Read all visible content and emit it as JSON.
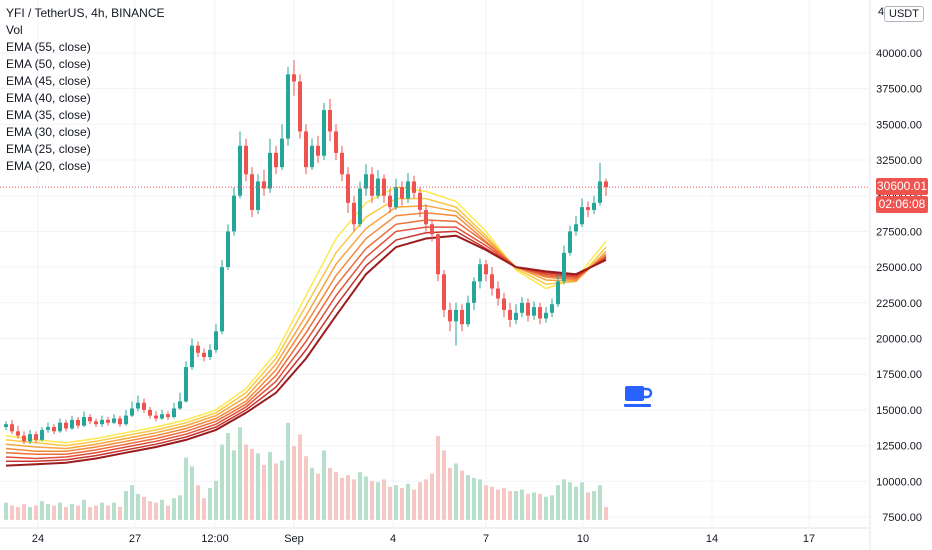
{
  "header": {
    "symbol_line": "YFI / TetherUS, 4h, BINANCE",
    "indicators": [
      "Vol",
      "EMA (55, close)",
      "EMA (50, close)",
      "EMA (45, close)",
      "EMA (40, close)",
      "EMA (35, close)",
      "EMA (30, close)",
      "EMA (25, close)",
      "EMA (20, close)"
    ]
  },
  "price_scale": {
    "currency": "USDT",
    "ticks": [
      "7500.00",
      "10000.00",
      "12500.00",
      "15000.00",
      "17500.00",
      "20000.00",
      "22500.00",
      "25000.00",
      "27500.00",
      "30000.00",
      "32500.00",
      "35000.00",
      "37500.00",
      "40000.00"
    ],
    "top_partial_tick": "4",
    "last_price": "30600.01",
    "countdown": "02:06:08"
  },
  "time_scale": {
    "ticks": [
      "24",
      "27",
      "12:00",
      "Sep",
      "4",
      "7",
      "10",
      "14",
      "17"
    ]
  },
  "icon": "coffee-cup-icon",
  "colors": {
    "up": "#26a69a",
    "down": "#ef5350",
    "up_vol": "#b6e0cb",
    "down_vol": "#f6c8c5",
    "ema_20": "#fce94f",
    "ema_55": "#9b1c1c",
    "last_price_tag": "#ef5350",
    "countdown_tag": "#ef5350",
    "icon": "#2962ff"
  },
  "chart_data": {
    "type": "candlestick",
    "title": "YFI / TetherUS, 4h, BINANCE",
    "ylim": [
      7000,
      43000
    ],
    "x_tick_labels": [
      "24",
      "27",
      "12:00",
      "Sep",
      "4",
      "7",
      "10",
      "14",
      "17"
    ],
    "last_price": 30600.01,
    "candles": [
      [
        13800,
        14000,
        14200,
        13600
      ],
      [
        14000,
        13500,
        14300,
        13300
      ],
      [
        13500,
        13200,
        13900,
        13000
      ],
      [
        13200,
        12800,
        13500,
        12600
      ],
      [
        12800,
        13300,
        13600,
        12600
      ],
      [
        13300,
        12900,
        13500,
        12700
      ],
      [
        12900,
        13600,
        13800,
        12800
      ],
      [
        13600,
        13800,
        14100,
        13400
      ],
      [
        13800,
        13500,
        14000,
        13300
      ],
      [
        13500,
        14100,
        14400,
        13400
      ],
      [
        14100,
        13700,
        14300,
        13500
      ],
      [
        13700,
        14300,
        14600,
        13600
      ],
      [
        14300,
        13900,
        14500,
        13700
      ],
      [
        13900,
        14500,
        14900,
        13800
      ],
      [
        14500,
        14200,
        14700,
        14000
      ],
      [
        14200,
        14000,
        14400,
        13800
      ],
      [
        14000,
        14300,
        14600,
        13800
      ],
      [
        14300,
        14100,
        14500,
        13900
      ],
      [
        14100,
        14400,
        14700,
        14000
      ],
      [
        14400,
        14000,
        14600,
        13800
      ],
      [
        14000,
        14600,
        15000,
        13900
      ],
      [
        14600,
        15100,
        15600,
        14500
      ],
      [
        15100,
        15500,
        16000,
        14900
      ],
      [
        15500,
        15000,
        15800,
        14800
      ],
      [
        15000,
        14600,
        15200,
        14400
      ],
      [
        14600,
        14400,
        14900,
        14200
      ],
      [
        14400,
        14700,
        15000,
        14300
      ],
      [
        14700,
        14500,
        14900,
        14300
      ],
      [
        14500,
        15100,
        15500,
        14400
      ],
      [
        15100,
        15600,
        16200,
        15000
      ],
      [
        15600,
        18000,
        18400,
        15500
      ],
      [
        18000,
        19500,
        20000,
        17800
      ],
      [
        19500,
        19000,
        19800,
        18700
      ],
      [
        19000,
        18700,
        19300,
        18400
      ],
      [
        18700,
        19200,
        19600,
        18500
      ],
      [
        19200,
        20500,
        21000,
        19000
      ],
      [
        20500,
        25000,
        25500,
        20300
      ],
      [
        25000,
        27500,
        28000,
        24800
      ],
      [
        27500,
        30000,
        30600,
        27200
      ],
      [
        30000,
        33500,
        34500,
        29800
      ],
      [
        33500,
        31500,
        34000,
        31000
      ],
      [
        31500,
        29000,
        32000,
        28500
      ],
      [
        29000,
        31000,
        31500,
        28700
      ],
      [
        31000,
        30500,
        31800,
        30000
      ],
      [
        30500,
        33000,
        34000,
        30200
      ],
      [
        33000,
        32000,
        33500,
        31500
      ],
      [
        32000,
        34000,
        35000,
        31800
      ],
      [
        34000,
        38500,
        39000,
        33500
      ],
      [
        38500,
        38000,
        39500,
        37000
      ],
      [
        38000,
        34500,
        38500,
        34000
      ],
      [
        34500,
        32000,
        35000,
        31500
      ],
      [
        32000,
        33500,
        34000,
        31800
      ],
      [
        33500,
        32800,
        34200,
        32300
      ],
      [
        32800,
        36000,
        36500,
        32500
      ],
      [
        36000,
        34500,
        36800,
        33800
      ],
      [
        34500,
        33000,
        35000,
        32500
      ],
      [
        33000,
        31500,
        33500,
        31000
      ],
      [
        31500,
        29500,
        32000,
        28800
      ],
      [
        29500,
        28000,
        30000,
        27500
      ],
      [
        28000,
        30500,
        31000,
        27800
      ],
      [
        30500,
        31500,
        32200,
        30000
      ],
      [
        31500,
        30000,
        32000,
        29500
      ],
      [
        30000,
        31200,
        31800,
        29800
      ],
      [
        31200,
        30000,
        31500,
        29500
      ],
      [
        30000,
        29200,
        30500,
        28800
      ],
      [
        29200,
        30600,
        31200,
        29000
      ],
      [
        30600,
        29800,
        31000,
        29300
      ],
      [
        29800,
        31000,
        31600,
        29500
      ],
      [
        31000,
        30200,
        31400,
        29800
      ],
      [
        30200,
        29000,
        30600,
        28500
      ],
      [
        29000,
        28000,
        29400,
        27500
      ],
      [
        28000,
        27300,
        28300,
        26800
      ],
      [
        27300,
        24500,
        27500,
        24000
      ],
      [
        24500,
        22000,
        24800,
        21500
      ],
      [
        22000,
        21200,
        22500,
        20500
      ],
      [
        21200,
        22000,
        22500,
        19500
      ],
      [
        22000,
        21000,
        22400,
        20500
      ],
      [
        21000,
        22500,
        23000,
        20800
      ],
      [
        22500,
        24000,
        24300,
        22000
      ],
      [
        24000,
        25200,
        25600,
        23500
      ],
      [
        25200,
        24500,
        25500,
        24000
      ],
      [
        24500,
        23500,
        25000,
        23000
      ],
      [
        23500,
        22800,
        24000,
        22300
      ],
      [
        22800,
        22000,
        23200,
        21500
      ],
      [
        22000,
        21300,
        22500,
        20800
      ],
      [
        21300,
        21800,
        22400,
        21000
      ],
      [
        21800,
        22500,
        22900,
        21500
      ],
      [
        22500,
        21600,
        22800,
        21200
      ],
      [
        21600,
        22200,
        22600,
        21300
      ],
      [
        22200,
        21400,
        22500,
        21000
      ],
      [
        21400,
        21800,
        22200,
        21100
      ],
      [
        21800,
        22400,
        22800,
        21500
      ],
      [
        22400,
        24000,
        24500,
        22200
      ],
      [
        24000,
        26000,
        26500,
        23800
      ],
      [
        26000,
        27500,
        27900,
        25800
      ],
      [
        27500,
        28000,
        28600,
        27200
      ],
      [
        28000,
        29200,
        29800,
        27800
      ],
      [
        29200,
        29000,
        29600,
        28500
      ],
      [
        29000,
        29500,
        30000,
        28700
      ],
      [
        29500,
        31000,
        32300,
        29300
      ],
      [
        31000,
        30600,
        31200,
        30000
      ]
    ],
    "volume": [
      [
        1200,
        0
      ],
      [
        1000,
        1
      ],
      [
        900,
        1
      ],
      [
        1100,
        1
      ],
      [
        900,
        0
      ],
      [
        1000,
        1
      ],
      [
        1300,
        0
      ],
      [
        1100,
        0
      ],
      [
        1000,
        1
      ],
      [
        1200,
        0
      ],
      [
        900,
        1
      ],
      [
        1100,
        0
      ],
      [
        1000,
        1
      ],
      [
        1400,
        0
      ],
      [
        900,
        1
      ],
      [
        1000,
        1
      ],
      [
        1200,
        0
      ],
      [
        1000,
        1
      ],
      [
        1200,
        0
      ],
      [
        900,
        1
      ],
      [
        2000,
        0
      ],
      [
        2400,
        0
      ],
      [
        1800,
        0
      ],
      [
        1600,
        1
      ],
      [
        1300,
        1
      ],
      [
        1200,
        1
      ],
      [
        1400,
        0
      ],
      [
        1000,
        1
      ],
      [
        1500,
        0
      ],
      [
        1700,
        0
      ],
      [
        4300,
        0
      ],
      [
        3700,
        0
      ],
      [
        2400,
        1
      ],
      [
        1500,
        1
      ],
      [
        2200,
        0
      ],
      [
        2700,
        0
      ],
      [
        5200,
        0
      ],
      [
        6000,
        0
      ],
      [
        4800,
        0
      ],
      [
        6400,
        0
      ],
      [
        5200,
        1
      ],
      [
        4900,
        1
      ],
      [
        4600,
        0
      ],
      [
        3800,
        1
      ],
      [
        4700,
        0
      ],
      [
        3900,
        1
      ],
      [
        4100,
        0
      ],
      [
        6700,
        0
      ],
      [
        5100,
        1
      ],
      [
        5900,
        1
      ],
      [
        4400,
        1
      ],
      [
        3600,
        0
      ],
      [
        3200,
        1
      ],
      [
        4800,
        0
      ],
      [
        3600,
        1
      ],
      [
        3300,
        1
      ],
      [
        2900,
        1
      ],
      [
        3100,
        1
      ],
      [
        2800,
        1
      ],
      [
        3300,
        0
      ],
      [
        3000,
        0
      ],
      [
        2700,
        1
      ],
      [
        2600,
        0
      ],
      [
        2800,
        1
      ],
      [
        2300,
        1
      ],
      [
        2400,
        0
      ],
      [
        2200,
        1
      ],
      [
        2500,
        0
      ],
      [
        2100,
        1
      ],
      [
        2600,
        1
      ],
      [
        2800,
        1
      ],
      [
        3200,
        1
      ],
      [
        5800,
        1
      ],
      [
        4800,
        1
      ],
      [
        3600,
        1
      ],
      [
        3900,
        0
      ],
      [
        3400,
        1
      ],
      [
        3100,
        0
      ],
      [
        2900,
        0
      ],
      [
        2800,
        0
      ],
      [
        2400,
        1
      ],
      [
        2300,
        1
      ],
      [
        2100,
        1
      ],
      [
        2200,
        1
      ],
      [
        2000,
        1
      ],
      [
        2000,
        0
      ],
      [
        2100,
        0
      ],
      [
        1800,
        1
      ],
      [
        1900,
        0
      ],
      [
        1800,
        1
      ],
      [
        1600,
        0
      ],
      [
        1700,
        0
      ],
      [
        2400,
        0
      ],
      [
        2800,
        0
      ],
      [
        2600,
        0
      ],
      [
        2300,
        0
      ],
      [
        2600,
        0
      ],
      [
        1900,
        1
      ],
      [
        2000,
        0
      ],
      [
        2400,
        0
      ],
      [
        900,
        1
      ]
    ],
    "ema_series": [
      {
        "name": "EMA (20, close)",
        "values": [
          13200,
          12900,
          12700,
          13000,
          13400,
          13800,
          14300,
          15000,
          16500,
          19000,
          23000,
          27000,
          29500,
          30600,
          30300,
          29600,
          27500,
          24800,
          23500,
          24200,
          26800
        ]
      },
      {
        "name": "EMA (25, close)",
        "values": [
          12900,
          12700,
          12500,
          12800,
          13200,
          13600,
          14100,
          14800,
          16200,
          18600,
          22300,
          26000,
          28500,
          29800,
          29800,
          29200,
          27200,
          24900,
          23800,
          24000,
          26400
        ]
      },
      {
        "name": "EMA (30, close)",
        "values": [
          12600,
          12400,
          12300,
          12600,
          13000,
          13400,
          13900,
          14600,
          15900,
          18200,
          21600,
          25200,
          27700,
          29200,
          29300,
          28900,
          27000,
          25000,
          24100,
          24000,
          26100
        ]
      },
      {
        "name": "EMA (35, close)",
        "values": [
          12300,
          12100,
          12100,
          12400,
          12800,
          13200,
          13700,
          14400,
          15600,
          17800,
          21000,
          24400,
          27000,
          28600,
          28800,
          28600,
          26800,
          25000,
          24300,
          24100,
          25900
        ]
      },
      {
        "name": "EMA (40, close)",
        "values": [
          12000,
          11900,
          11900,
          12200,
          12600,
          13000,
          13500,
          14200,
          15400,
          17400,
          20400,
          23700,
          26300,
          28000,
          28300,
          28200,
          26700,
          25000,
          24400,
          24200,
          25800
        ]
      },
      {
        "name": "EMA (45, close)",
        "values": [
          11700,
          11600,
          11700,
          12000,
          12400,
          12800,
          13300,
          14000,
          15200,
          17000,
          19800,
          23000,
          25700,
          27500,
          27800,
          27800,
          26500,
          25000,
          24500,
          24300,
          25700
        ]
      },
      {
        "name": "EMA (50, close)",
        "values": [
          11400,
          11400,
          11500,
          11800,
          12200,
          12600,
          13100,
          13800,
          15000,
          16600,
          19200,
          22300,
          25100,
          26900,
          27400,
          27500,
          26300,
          25000,
          24600,
          24400,
          25600
        ]
      },
      {
        "name": "EMA (55, close)",
        "values": [
          11100,
          11200,
          11300,
          11600,
          12000,
          12400,
          12900,
          13600,
          14800,
          16200,
          18600,
          21600,
          24500,
          26400,
          27000,
          27200,
          26200,
          25000,
          24700,
          24500,
          25500
        ]
      }
    ]
  }
}
